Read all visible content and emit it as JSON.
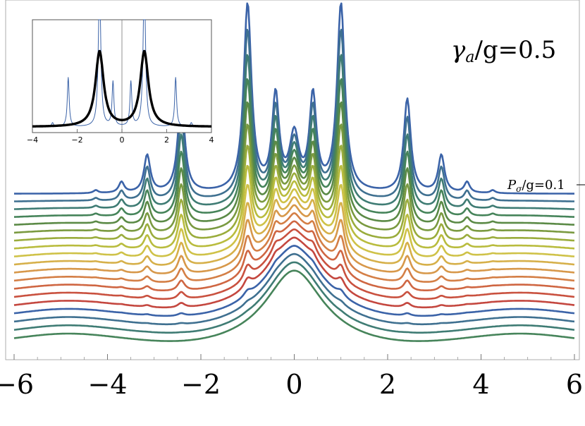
{
  "chart_data": [
    {
      "type": "line",
      "xlim": [
        -6,
        6
      ],
      "x_ticks": [
        "−6",
        "−4",
        "−2",
        "0",
        "2",
        "4",
        "6"
      ],
      "x_tick_values": [
        -6,
        -4,
        -2,
        0,
        2,
        4,
        6
      ],
      "annotation_gamma": "γa/g=0.5",
      "annotation_gamma_parts": {
        "symbol": "γ",
        "sub": "a",
        "rest": "/g=0.5"
      },
      "annotation_pump": "Pσ/g=0.1",
      "annotation_pump_parts": {
        "symbol": "P",
        "sub": "σ",
        "rest": "/g=0.1"
      },
      "grid": false,
      "n_curves": 19,
      "curve_colors": [
        "#3b63a8",
        "#3f7090",
        "#3f7c74",
        "#46845a",
        "#5b8a46",
        "#7a9a40",
        "#9aac3c",
        "#b9bc3e",
        "#cfc248",
        "#d6b04a",
        "#d7984a",
        "#d47f46",
        "#cf6642",
        "#c9513f",
        "#c4473f",
        "#3b63a8",
        "#3f7090",
        "#3f7c74",
        "#46845a"
      ],
      "peak_positions_x": [
        -4.25,
        -3.7,
        -3.15,
        -2.42,
        -1.0,
        -0.4,
        0.0,
        0.4,
        1.0,
        2.42,
        3.15,
        3.7,
        4.25
      ],
      "description_values": {
        "top_curve_peaks_height": [
          0.02,
          0.1,
          0.35,
          0.9,
          1.8,
          0.95,
          0.35,
          0.95,
          1.8,
          0.9,
          0.35,
          0.1,
          0.02
        ],
        "bottom_curve_center_peak": 1.0,
        "bottom_curve_side_dip_x": [
          -2.0,
          2.0
        ],
        "bottom_curve_side_bump_x": [
          -4.8,
          4.8
        ]
      }
    },
    {
      "type": "line",
      "xlim": [
        -4,
        4
      ],
      "x_ticks": [
        "−4",
        "−2",
        "0",
        "2",
        "4"
      ],
      "x_tick_values": [
        -4,
        -2,
        0,
        2,
        4
      ],
      "series": [
        {
          "color": "#000000",
          "peaks_x": [
            -1.0,
            1.0
          ],
          "peak_height": 0.7
        },
        {
          "color": "#3b63a8",
          "peaks_x": [
            -3.1,
            -2.4,
            -1.0,
            -0.4,
            0.4,
            1.0,
            2.4,
            3.1
          ],
          "peak_heights": [
            0.03,
            0.4,
            1.5,
            0.35,
            0.35,
            1.5,
            0.4,
            0.03
          ]
        }
      ]
    }
  ]
}
